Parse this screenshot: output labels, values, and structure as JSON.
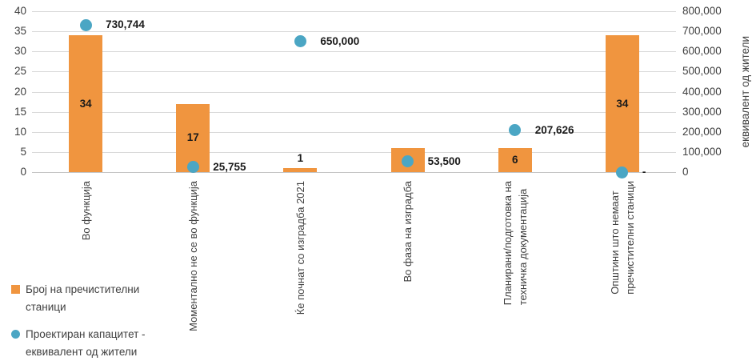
{
  "chart_data": {
    "type": "bar",
    "title": "",
    "categories": [
      "Во функција",
      "Моментално не се во функција",
      "Ќе почнат со изградба 2021",
      "Во фаза на изградба",
      "Планирани/подготовка на\nтехничка документација",
      "Општини што немаат\nпречистителни  станици"
    ],
    "series": [
      {
        "name": "Број на пречистителни станици",
        "type": "bar",
        "axis": "left",
        "color": "#F0953F",
        "values": [
          34,
          17,
          1,
          6,
          6,
          34
        ],
        "data_labels": [
          "34",
          "17",
          "1",
          "6",
          "6",
          "34"
        ]
      },
      {
        "name": "Проектиран капацитет - еквивалент од жители",
        "type": "scatter",
        "axis": "right",
        "color": "#4BA6C4",
        "values": [
          730744,
          25755,
          650000,
          53500,
          207626,
          0
        ],
        "data_labels": [
          "730,744",
          "25,755",
          "650,000",
          "53,500",
          "207,626",
          "-"
        ]
      }
    ],
    "left_axis": {
      "min": 0,
      "max": 40,
      "step": 5,
      "tick_labels": [
        "40",
        "35",
        "30",
        "25",
        "20",
        "15",
        "10",
        "5",
        "0"
      ]
    },
    "right_axis": {
      "min": 0,
      "max": 800000,
      "step": 100000,
      "title": "еквивалент од жители",
      "tick_labels": [
        "800,000",
        "700,000",
        "600,000",
        "500,000",
        "400,000",
        "300,000",
        "200,000",
        "100,000",
        "0"
      ]
    },
    "legend": {
      "position": "bottom-left",
      "items": [
        {
          "label": "Број на пречистителни\nстаници",
          "marker": "square",
          "color": "#F0953F"
        },
        {
          "label": "Проектиран капацитет -\nеквивалент од жители",
          "marker": "circle",
          "color": "#4BA6C4"
        }
      ]
    },
    "grid": true,
    "colors": {
      "grid": "#D9D9D9",
      "axis_text": "#404040",
      "data_label": "#1A1A1A"
    }
  }
}
